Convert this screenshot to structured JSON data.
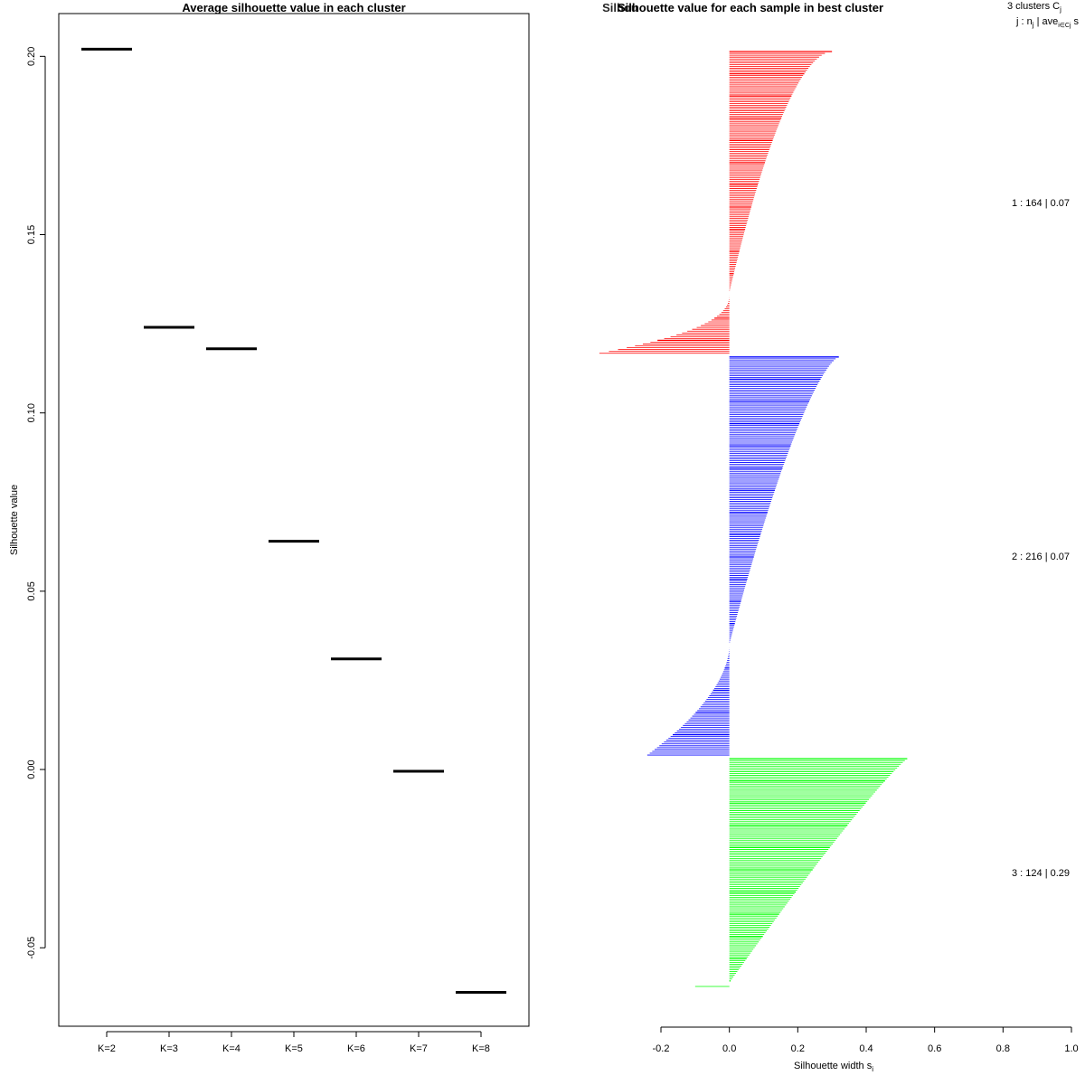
{
  "chart_data": [
    {
      "type": "line",
      "title": "Average silhouette value in each cluster",
      "xlabel": "",
      "ylabel": "Silhouette value",
      "categories": [
        "K=2",
        "K=3",
        "K=4",
        "K=5",
        "K=6",
        "K=7",
        "K=8"
      ],
      "values": [
        0.202,
        0.124,
        0.118,
        0.064,
        0.031,
        -0.0005,
        -0.0625
      ],
      "ylim": [
        -0.072,
        0.212
      ],
      "yticks": [
        -0.05,
        0.0,
        0.05,
        0.1,
        0.15,
        0.2
      ],
      "ytick_labels": [
        "-0.05",
        "0.00",
        "0.05",
        "0.10",
        "0.15",
        "0.20"
      ],
      "line_color": "#000000"
    },
    {
      "type": "bar",
      "orientation": "horizontal",
      "title": "Silhouette value for each sample in best cluster",
      "overlaid_title_fragment": "Silhou",
      "xlabel": "Silhouette width s",
      "xlabel_subscript": "i",
      "xlim": [
        -0.2,
        1.0
      ],
      "xticks": [
        -0.2,
        0.0,
        0.2,
        0.4,
        0.6,
        0.8,
        1.0
      ],
      "xtick_labels": [
        "-0.2",
        "0.0",
        "0.2",
        "0.4",
        "0.6",
        "0.8",
        "1.0"
      ],
      "legend_header": "3  clusters  C",
      "legend_header_subscript": "j",
      "legend_subheader_prefix": "j :  n",
      "legend_subheader_mid": " | ave",
      "legend_subheader_sub": "i∈Cj",
      "legend_subheader_suffix": "  s",
      "clusters": [
        {
          "label": "1 :   164  |  0.07",
          "n": 164,
          "avg": 0.07,
          "max": 0.3,
          "min": -0.38,
          "zero_frac": 0.8,
          "color": "#ff0000",
          "pos_shape": 0.55,
          "neg_shape": 2.4
        },
        {
          "label": "2 :   216  |  0.07",
          "n": 216,
          "avg": 0.07,
          "max": 0.32,
          "min": -0.24,
          "zero_frac": 0.72,
          "color": "#0000ff",
          "pos_shape": 0.7,
          "neg_shape": 1.8
        },
        {
          "label": "3 :   124  |  0.29",
          "n": 124,
          "avg": 0.29,
          "max": 0.52,
          "min": -0.1,
          "zero_frac": 0.98,
          "color": "#00ff00",
          "pos_shape": 0.9,
          "neg_shape": 1.5
        }
      ]
    }
  ]
}
